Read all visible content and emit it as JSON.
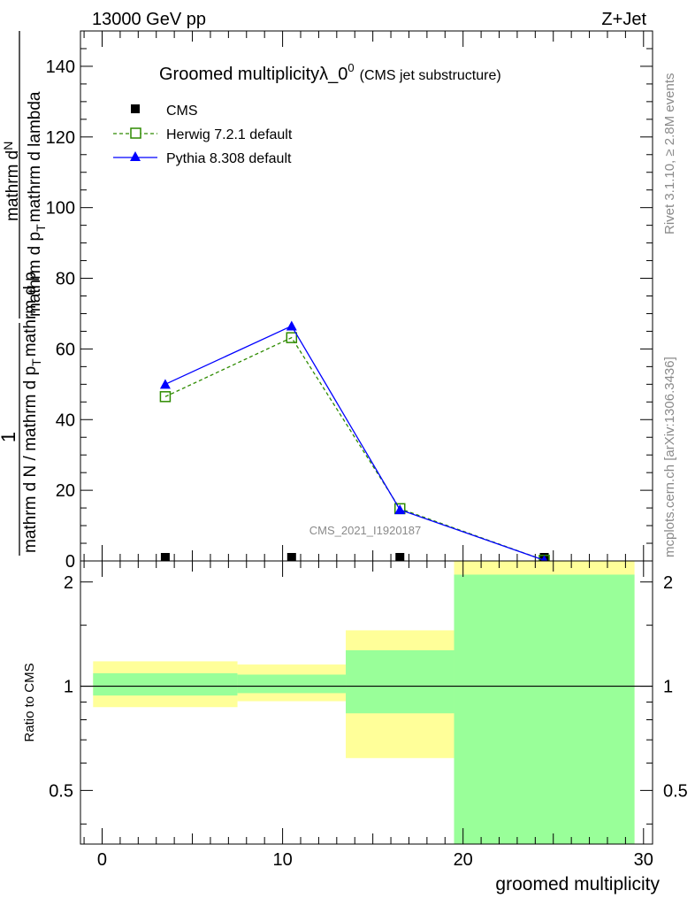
{
  "header": {
    "left": "13000 GeV pp",
    "right": "Z+Jet"
  },
  "side_labels": {
    "rivet": "Rivet 3.1.10, ≥ 2.8M events",
    "source": "mcplots.cern.ch [arXiv:1306.3436]"
  },
  "chart_data": [
    {
      "type": "line",
      "title_main": "Groomed multiplicityλ_0",
      "title_sup": "0",
      "title_sub": "(CMS jet substructure)",
      "watermark": "CMS_2021_I1920187",
      "ylabel": {
        "num": "1",
        "den": "mathrm d N / mathrm d p",
        "den_sub": "T",
        "den_tail": "mathrm d p",
        "den_sub2": "T",
        "num_top": "mathrm d",
        "num_top2": "N",
        "frac_prefix": "mathrm d lambda"
      },
      "ylabel_lines": [
        "1",
        "mathrm d N / mathrm d p",
        "T",
        "mathrm d",
        "T",
        "p",
        "mathrm d",
        "2",
        "N"
      ],
      "xlim": [
        -1.2,
        30.5
      ],
      "ylim": [
        0,
        150
      ],
      "yticks": [
        0,
        20,
        40,
        60,
        80,
        100,
        120,
        140
      ],
      "ytick_labels": [
        "0",
        "20",
        "40",
        "60",
        "80",
        "100",
        "120",
        "140"
      ],
      "legend": [
        {
          "name": "CMS",
          "color": "#000000",
          "marker": "square-filled"
        },
        {
          "name": "Herwig 7.2.1 default",
          "color": "#2e8b00",
          "marker": "square-open"
        },
        {
          "name": "Pythia 8.308 default",
          "color": "#0000ff",
          "marker": "triangle"
        }
      ],
      "series": [
        {
          "name": "CMS",
          "x": [
            3.5,
            10.5,
            16.5,
            24.5
          ],
          "y": [
            0.3,
            0.3,
            0.3,
            0.1
          ]
        },
        {
          "name": "Herwig 7.2.1 default",
          "x": [
            3.5,
            10.5,
            16.5,
            24.5
          ],
          "y": [
            46.5,
            63.2,
            14.8,
            0.2
          ]
        },
        {
          "name": "Pythia 8.308 default",
          "x": [
            3.5,
            10.5,
            16.5,
            24.5
          ],
          "y": [
            50.0,
            66.5,
            14.5,
            0.2
          ]
        }
      ]
    },
    {
      "type": "area",
      "ylabel": "Ratio to CMS",
      "xlabel": "groomed multiplicity",
      "xlim": [
        -1.2,
        30.5
      ],
      "ylim": [
        0.35,
        2.3
      ],
      "xticks": [
        0,
        10,
        20,
        30
      ],
      "xtick_labels": [
        "0",
        "10",
        "20",
        "30"
      ],
      "yticks": [
        0.5,
        1,
        2
      ],
      "ytick_labels": [
        "0.5",
        "1",
        "2"
      ],
      "reference_line": 1,
      "bins": [
        {
          "x0": -0.5,
          "x1": 7.5,
          "yellow": [
            0.87,
            1.18
          ],
          "green": [
            0.94,
            1.09
          ]
        },
        {
          "x0": 7.5,
          "x1": 13.5,
          "yellow": [
            0.905,
            1.155
          ],
          "green": [
            0.955,
            1.08
          ]
        },
        {
          "x0": 13.5,
          "x1": 19.5,
          "yellow": [
            0.62,
            1.45
          ],
          "green": [
            0.835,
            1.27
          ]
        },
        {
          "x0": 19.5,
          "x1": 29.5,
          "yellow": [
            0.35,
            2.3
          ],
          "green": [
            0.35,
            2.1
          ]
        }
      ],
      "band_colors": {
        "yellow": "#ffff99",
        "green": "#99ff99"
      }
    }
  ]
}
